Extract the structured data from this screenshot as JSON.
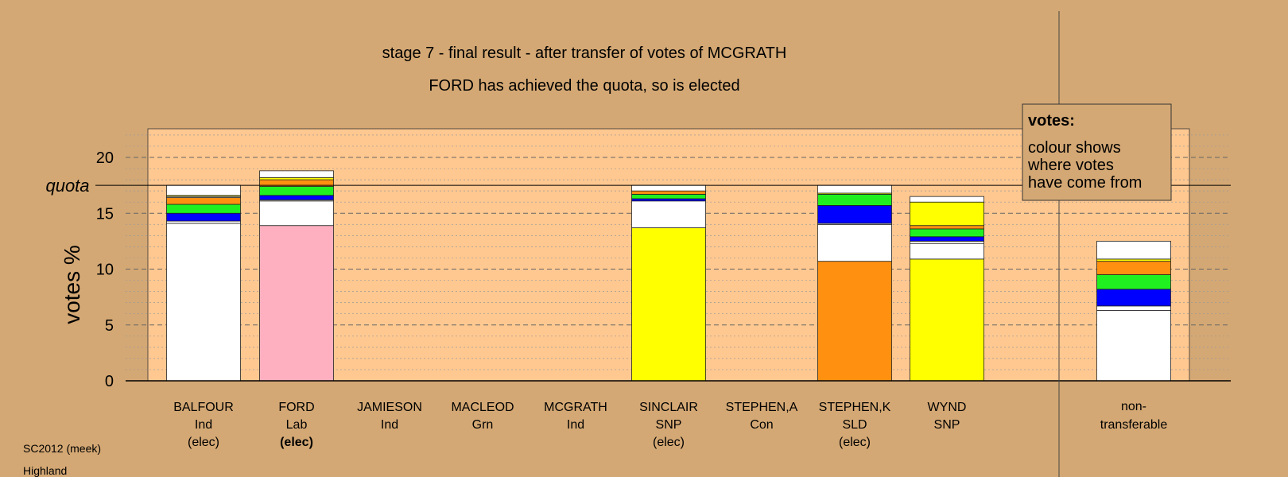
{
  "title": "stage 7 - final result - after transfer of votes of MCGRATH",
  "subtitle": "FORD has achieved the quota, so is elected",
  "quota_label": "quota",
  "legend": {
    "heading": "votes:",
    "lines": [
      "colour shows",
      "where votes",
      "have come from"
    ]
  },
  "footer": {
    "line1": "SC2012 (meek)",
    "line2": "Highland"
  },
  "colors": {
    "background": "#D4A874",
    "plot_background": "#FFC890",
    "Ind": "#FFFFFF",
    "Lab": "#FFB0C0",
    "SNP": "#FFFF00",
    "SLD": "#FF9010",
    "Con": "#0000FF",
    "Grn": "#20F020"
  },
  "chart_data": {
    "type": "bar",
    "stacked": true,
    "ylabel": "votes %",
    "ylim": [
      0,
      22.5
    ],
    "yticks": [
      0,
      5,
      10,
      15,
      20
    ],
    "quota": 17.5,
    "grid": true,
    "candidates": [
      {
        "name": "BALFOUR",
        "party": "Ind",
        "status": "(elec)",
        "status_bold": false,
        "segments": [
          {
            "source": "Ind",
            "value": 14.1
          },
          {
            "source": "Ind",
            "value": 0.2
          },
          {
            "source": "Con",
            "value": 0.7
          },
          {
            "source": "Grn",
            "value": 0.8
          },
          {
            "source": "SLD",
            "value": 0.6
          },
          {
            "source": "Ind",
            "value": 0.1
          },
          {
            "source": "SNP",
            "value": 0.1
          },
          {
            "source": "Ind",
            "value": 0.9
          }
        ]
      },
      {
        "name": "FORD",
        "party": "Lab",
        "status": "(elec)",
        "status_bold": true,
        "segments": [
          {
            "source": "Lab",
            "value": 13.9
          },
          {
            "source": "Ind",
            "value": 2.2
          },
          {
            "source": "Ind",
            "value": 0.1
          },
          {
            "source": "Con",
            "value": 0.4
          },
          {
            "source": "Grn",
            "value": 0.8
          },
          {
            "source": "SLD",
            "value": 0.6
          },
          {
            "source": "SNP",
            "value": 0.2
          },
          {
            "source": "Ind",
            "value": 0.6
          }
        ]
      },
      {
        "name": "JAMIESON",
        "party": "Ind",
        "status": "",
        "status_bold": false,
        "segments": []
      },
      {
        "name": "MACLEOD",
        "party": "Grn",
        "status": "",
        "status_bold": false,
        "segments": []
      },
      {
        "name": "MCGRATH",
        "party": "Ind",
        "status": "",
        "status_bold": false,
        "segments": []
      },
      {
        "name": "SINCLAIR",
        "party": "SNP",
        "status": "(elec)",
        "status_bold": false,
        "segments": [
          {
            "source": "SNP",
            "value": 13.7
          },
          {
            "source": "Ind",
            "value": 2.4
          },
          {
            "source": "Con",
            "value": 0.2
          },
          {
            "source": "Grn",
            "value": 0.4
          },
          {
            "source": "SLD",
            "value": 0.3
          },
          {
            "source": "Ind",
            "value": 0.5
          }
        ]
      },
      {
        "name": "STEPHEN,A",
        "party": "Con",
        "status": "",
        "status_bold": false,
        "segments": []
      },
      {
        "name": "STEPHEN,K",
        "party": "SLD",
        "status": "(elec)",
        "status_bold": false,
        "segments": [
          {
            "source": "SLD",
            "value": 10.7
          },
          {
            "source": "Ind",
            "value": 3.3
          },
          {
            "source": "Ind",
            "value": 0.1
          },
          {
            "source": "Con",
            "value": 1.6
          },
          {
            "source": "Grn",
            "value": 1.0
          },
          {
            "source": "SNP",
            "value": 0.1
          },
          {
            "source": "Ind",
            "value": 0.7
          }
        ]
      },
      {
        "name": "WYND",
        "party": "SNP",
        "status": "",
        "status_bold": false,
        "segments": [
          {
            "source": "SNP",
            "value": 10.9
          },
          {
            "source": "Ind",
            "value": 1.4
          },
          {
            "source": "Ind",
            "value": 0.2
          },
          {
            "source": "Con",
            "value": 0.4
          },
          {
            "source": "Grn",
            "value": 0.7
          },
          {
            "source": "SLD",
            "value": 0.3
          },
          {
            "source": "SNP",
            "value": 2.1
          },
          {
            "source": "Ind",
            "value": 0.5
          }
        ]
      }
    ],
    "nontransferable": {
      "label_line1": "non-",
      "label_line2": "transferable",
      "segments": [
        {
          "source": "Ind",
          "value": 6.3
        },
        {
          "source": "Ind",
          "value": 0.4
        },
        {
          "source": "Con",
          "value": 1.5
        },
        {
          "source": "Grn",
          "value": 1.3
        },
        {
          "source": "SLD",
          "value": 1.2
        },
        {
          "source": "SNP",
          "value": 0.2
        },
        {
          "source": "Ind",
          "value": 1.6
        }
      ]
    }
  }
}
